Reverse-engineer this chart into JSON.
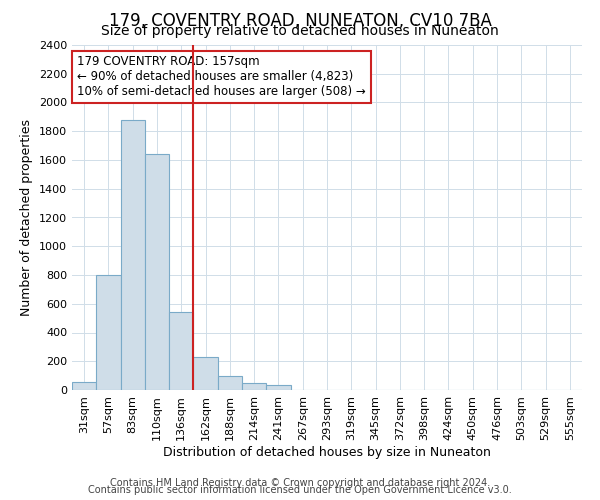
{
  "title": "179, COVENTRY ROAD, NUNEATON, CV10 7BA",
  "subtitle": "Size of property relative to detached houses in Nuneaton",
  "xlabel": "Distribution of detached houses by size in Nuneaton",
  "ylabel": "Number of detached properties",
  "footer_line1": "Contains HM Land Registry data © Crown copyright and database right 2024.",
  "footer_line2": "Contains public sector information licensed under the Open Government Licence v3.0.",
  "bin_labels": [
    "31sqm",
    "57sqm",
    "83sqm",
    "110sqm",
    "136sqm",
    "162sqm",
    "188sqm",
    "214sqm",
    "241sqm",
    "267sqm",
    "293sqm",
    "319sqm",
    "345sqm",
    "372sqm",
    "398sqm",
    "424sqm",
    "450sqm",
    "476sqm",
    "503sqm",
    "529sqm",
    "555sqm"
  ],
  "bar_values": [
    55,
    800,
    1880,
    1640,
    540,
    230,
    100,
    50,
    32,
    0,
    0,
    0,
    0,
    0,
    0,
    0,
    0,
    0,
    0,
    0,
    0
  ],
  "bar_color": "#cfdde8",
  "bar_edge_color": "#7aaac8",
  "grid_color": "#d0dde8",
  "annotation_text": "179 COVENTRY ROAD: 157sqm\n← 90% of detached houses are smaller (4,823)\n10% of semi-detached houses are larger (508) →",
  "vline_x_index": 5.0,
  "vline_color": "#cc2222",
  "annotation_box_color": "#ffffff",
  "annotation_box_edge": "#cc2222",
  "ylim": [
    0,
    2400
  ],
  "yticks": [
    0,
    200,
    400,
    600,
    800,
    1000,
    1200,
    1400,
    1600,
    1800,
    2000,
    2200,
    2400
  ],
  "title_fontsize": 12,
  "subtitle_fontsize": 10,
  "axis_label_fontsize": 9,
  "tick_fontsize": 8,
  "annotation_fontsize": 8.5,
  "footer_fontsize": 7
}
